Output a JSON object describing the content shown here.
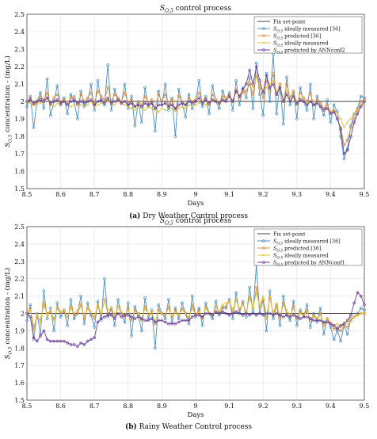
{
  "chart_data": [
    {
      "type": "line",
      "title": "S_{O,5} control process",
      "title_main": "S",
      "title_sub": "O,5",
      "title_rest": " control process",
      "xlabel": "Days",
      "ylabel": "S_{O,5} concentration - (mg/L)",
      "ylabel_main": "S",
      "ylabel_sub": "O,5",
      "ylabel_rest": " concentration - (mg/L)",
      "xlim": [
        8.5,
        9.5
      ],
      "ylim": [
        1.5,
        2.5
      ],
      "xticks": [
        8.5,
        8.6,
        8.7,
        8.8,
        8.9,
        9,
        9.1,
        9.2,
        9.3,
        9.4,
        9.5
      ],
      "yticks": [
        1.5,
        1.6,
        1.7,
        1.8,
        1.9,
        2,
        2.1,
        2.2,
        2.3,
        2.4,
        2.5
      ],
      "grid": true,
      "legend_position": "top-right",
      "setpoint": 2.0,
      "caption_label": "(a)",
      "caption_text": "Dry Weather Control process",
      "series": [
        {
          "name": "Fix set-point",
          "label_main": "Fix set-point",
          "color": "#404040",
          "marker": "none"
        },
        {
          "name": "S_{O,5} ideally measured [36]",
          "label_main": "S",
          "label_sub": "O,5",
          "label_rest": " ideally measured [36]",
          "color": "#4a90c4",
          "marker": "circle",
          "values": [
            1.97,
            2.03,
            1.85,
            2.0,
            2.05,
            1.96,
            2.13,
            1.92,
            2.0,
            2.09,
            1.98,
            2.02,
            1.93,
            2.04,
            2.0,
            1.9,
            2.06,
            1.97,
            2.0,
            2.1,
            1.95,
            2.12,
            2.0,
            1.98,
            2.21,
            1.95,
            2.07,
            2.01,
            1.99,
            2.1,
            1.96,
            2.03,
            1.86,
            2.0,
            1.88,
            2.08,
            1.97,
            2.0,
            1.83,
            2.06,
            1.98,
            2.1,
            1.95,
            2.02,
            1.8,
            2.07,
            1.99,
            1.91,
            2.04,
            1.96,
            2.0,
            2.12,
            1.97,
            2.03,
            1.93,
            2.09,
            2.0,
            1.96,
            2.06,
            2.01,
            2.05,
            1.95,
            2.12,
            1.98,
            2.08,
            2.02,
            2.14,
            1.96,
            2.22,
            2.04,
            1.92,
            2.16,
            2.0,
            2.27,
            1.93,
            2.1,
            1.87,
            2.14,
            1.98,
            2.05,
            1.9,
            2.08,
            2.0,
            1.95,
            2.1,
            1.9,
            2.03,
            1.97,
            1.92,
            2.01,
            1.88,
            1.98,
            1.94,
            1.8,
            1.67,
            1.73,
            1.86,
            1.93,
            1.96,
            2.03,
            2.02
          ]
        },
        {
          "name": "S_{O,5} predicted [36]",
          "label_main": "S",
          "label_sub": "O,5",
          "label_rest": " predicted [36]",
          "color": "#d98c3e",
          "marker": "circle",
          "values": [
            2.0,
            2.02,
            1.98,
            1.99,
            2.03,
            2.01,
            2.05,
            1.98,
            2.02,
            2.04,
            2.0,
            2.01,
            1.99,
            2.02,
            2.03,
            1.98,
            2.04,
            2.0,
            2.02,
            2.05,
            1.99,
            2.06,
            2.03,
            2.01,
            2.08,
            2.0,
            2.04,
            2.02,
            2.0,
            2.05,
            1.99,
            2.01,
            1.97,
            2.0,
            1.98,
            2.03,
            1.99,
            2.01,
            1.96,
            2.04,
            2.0,
            2.04,
            1.98,
            2.01,
            1.95,
            2.03,
            2.0,
            1.98,
            2.02,
            2.0,
            2.01,
            2.05,
            2.0,
            2.02,
            1.98,
            2.04,
            2.01,
            1.99,
            2.03,
            2.02,
            2.04,
            2.0,
            2.07,
            2.02,
            2.05,
            2.06,
            2.1,
            2.04,
            2.15,
            2.08,
            2.02,
            2.12,
            2.06,
            2.16,
            2.04,
            2.1,
            2.0,
            2.1,
            2.02,
            2.06,
            1.98,
            2.05,
            2.02,
            2.0,
            2.05,
            1.98,
            2.01,
            1.99,
            1.96,
            1.98,
            1.94,
            1.95,
            1.9,
            1.85,
            1.75,
            1.78,
            1.85,
            1.9,
            1.95,
            2.0,
            2.01
          ]
        },
        {
          "name": "S_{O,5} ideally measured",
          "label_main": "S",
          "label_sub": "O,5",
          "label_rest": " ideally measured",
          "color": "#e3c23a",
          "marker": "x",
          "values": [
            2.0,
            1.99,
            1.98,
            2.01,
            1.99,
            2.0,
            2.02,
            1.98,
            1.97,
            1.99,
            1.98,
            2.0,
            1.99,
            1.97,
            1.98,
            1.99,
            1.98,
            1.97,
            1.98,
            2.0,
            1.97,
            1.98,
            1.99,
            2.0,
            2.01,
            1.99,
            1.98,
            2.0,
            1.99,
            1.98,
            1.97,
            1.96,
            1.95,
            1.97,
            1.96,
            1.95,
            1.97,
            1.96,
            1.95,
            1.94,
            1.96,
            1.95,
            1.97,
            1.96,
            1.95,
            1.96,
            1.97,
            1.96,
            1.98,
            1.97,
            1.98,
            1.99,
            2.0,
            1.98,
            1.99,
            2.0,
            2.01,
            1.99,
            2.0,
            2.02,
            2.03,
            2.01,
            2.05,
            2.03,
            2.06,
            2.1,
            2.12,
            2.08,
            2.14,
            2.1,
            2.05,
            2.08,
            2.1,
            2.12,
            2.05,
            2.1,
            2.0,
            2.06,
            2.03,
            2.04,
            2.0,
            2.02,
            2.0,
            1.99,
            2.0,
            1.98,
            1.99,
            1.97,
            1.95,
            1.96,
            1.94,
            1.95,
            1.93,
            1.9,
            1.85,
            1.88,
            1.9,
            1.93,
            1.95,
            1.98,
            2.0
          ]
        },
        {
          "name": "S_{O,5} predicted by ANNconf2",
          "label_main": "S",
          "label_sub": "O,5",
          "label_rest": " predicted by ANNconf2",
          "color": "#6a3d9a",
          "marker": "circle",
          "values": [
            2.0,
            2.01,
            1.99,
            2.0,
            2.01,
            2.0,
            2.02,
            1.99,
            2.0,
            2.01,
            1.99,
            2.0,
            1.98,
            2.0,
            2.01,
            1.99,
            2.0,
            1.99,
            2.0,
            2.01,
            1.98,
            2.0,
            2.01,
            1.99,
            2.02,
            1.99,
            2.0,
            2.01,
            1.99,
            2.0,
            1.98,
            1.99,
            1.97,
            1.98,
            1.97,
            1.99,
            1.98,
            1.99,
            1.96,
            1.98,
            1.98,
            1.99,
            1.97,
            1.98,
            1.96,
            1.98,
            1.99,
            1.98,
            2.0,
            1.99,
            2.0,
            2.02,
            1.99,
            2.01,
            1.99,
            2.01,
            2.0,
            1.99,
            2.01,
            2.0,
            2.03,
            2.0,
            2.06,
            2.03,
            2.07,
            2.1,
            2.18,
            2.1,
            2.2,
            2.12,
            2.05,
            2.15,
            2.08,
            2.1,
            2.04,
            2.08,
            2.0,
            2.04,
            2.0,
            2.03,
            1.99,
            2.01,
            2.0,
            1.98,
            2.0,
            1.98,
            1.99,
            1.97,
            1.95,
            1.96,
            1.93,
            1.94,
            1.9,
            1.84,
            1.7,
            1.72,
            1.8,
            1.88,
            1.93,
            1.97,
            2.0
          ]
        }
      ]
    },
    {
      "type": "line",
      "title": "S_{O,5} control process",
      "title_main": "S",
      "title_sub": "O,5",
      "title_rest": " control process",
      "xlabel": "Days",
      "ylabel": "S_{O,5} concentration - (mg/L)",
      "ylabel_main": "S",
      "ylabel_sub": "O,5",
      "ylabel_rest": " concentration - (mg/L)",
      "xlim": [
        8.5,
        9.5
      ],
      "ylim": [
        1.5,
        2.5
      ],
      "xticks": [
        8.5,
        8.6,
        8.7,
        8.8,
        8.9,
        9,
        9.1,
        9.2,
        9.3,
        9.4,
        9.5
      ],
      "yticks": [
        1.5,
        1.6,
        1.7,
        1.8,
        1.9,
        2,
        2.1,
        2.2,
        2.3,
        2.4,
        2.5
      ],
      "grid": true,
      "legend_position": "top-right",
      "setpoint": 2.0,
      "caption_label": "(b)",
      "caption_text": "Rainy Weather Control process",
      "series": [
        {
          "name": "Fix set-point",
          "label_main": "Fix set-point",
          "color": "#404040",
          "marker": "none"
        },
        {
          "name": "S_{O,5} ideally measured [36]",
          "label_main": "S",
          "label_sub": "O,5",
          "label_rest": " ideally measured [36]",
          "color": "#4a90c4",
          "marker": "circle",
          "values": [
            1.96,
            2.05,
            1.85,
            2.0,
            1.88,
            2.13,
            1.97,
            2.03,
            1.9,
            2.06,
            1.98,
            2.02,
            1.93,
            2.08,
            1.97,
            2.0,
            2.1,
            1.94,
            2.06,
            1.99,
            1.92,
            2.07,
            1.96,
            2.2,
            1.98,
            2.03,
            1.93,
            2.08,
            2.0,
            1.95,
            2.06,
            1.87,
            2.04,
            1.99,
            1.9,
            2.09,
            1.97,
            2.02,
            1.8,
            2.05,
            2.0,
            1.97,
            2.08,
            1.95,
            2.03,
            1.97,
            2.06,
            2.0,
            1.94,
            2.1,
            1.98,
            2.03,
            1.93,
            2.06,
            2.0,
            1.97,
            2.07,
            1.99,
            2.04,
            2.03,
            2.08,
            1.97,
            2.12,
            2.0,
            2.07,
            1.98,
            2.15,
            2.01,
            2.28,
            2.0,
            2.08,
            1.9,
            2.13,
            1.97,
            2.05,
            1.93,
            2.1,
            1.99,
            1.96,
            2.07,
            1.93,
            2.02,
            1.98,
            2.05,
            1.92,
            2.0,
            1.95,
            2.03,
            1.88,
            1.97,
            1.92,
            1.85,
            1.9,
            1.84,
            1.93,
            1.88,
            1.97,
            1.98,
            2.0,
            2.03,
            2.02
          ]
        },
        {
          "name": "S_{O,5} predicted [36]",
          "label_main": "S",
          "label_sub": "O,5",
          "label_rest": " predicted [36]",
          "color": "#d98c3e",
          "marker": "circle",
          "values": [
            2.0,
            2.03,
            1.92,
            1.98,
            1.96,
            2.05,
            2.0,
            2.01,
            1.97,
            2.03,
            2.0,
            2.01,
            1.98,
            2.04,
            1.99,
            2.0,
            2.05,
            1.97,
            2.03,
            2.0,
            1.97,
            2.04,
            1.99,
            2.08,
            2.0,
            2.02,
            1.98,
            2.04,
            2.0,
            1.98,
            2.03,
            1.96,
            2.02,
            2.0,
            1.96,
            2.04,
            1.99,
            2.01,
            1.94,
            2.02,
            2.0,
            1.99,
            2.04,
            1.98,
            2.02,
            1.99,
            2.03,
            2.0,
            1.97,
            2.05,
            1.99,
            2.02,
            1.97,
            2.04,
            2.0,
            1.99,
            2.04,
            2.0,
            2.03,
            2.04,
            2.07,
            2.0,
            2.08,
            2.02,
            2.06,
            2.0,
            2.1,
            2.03,
            2.15,
            2.04,
            2.08,
            1.97,
            2.09,
            2.0,
            2.04,
            1.97,
            2.06,
            2.0,
            1.98,
            2.04,
            1.97,
            2.01,
            1.99,
            2.02,
            1.96,
            1.99,
            1.97,
            2.0,
            1.93,
            1.97,
            1.94,
            1.91,
            1.92,
            1.9,
            1.93,
            1.92,
            1.96,
            1.98,
            1.99,
            2.0,
            2.0
          ]
        },
        {
          "name": "S_{O,5} ideally measured",
          "label_main": "S",
          "label_sub": "O,5",
          "label_rest": " ideally measured",
          "color": "#e3c23a",
          "marker": "x",
          "values": [
            2.0,
            2.02,
            1.9,
            2.0,
            1.94,
            2.07,
            1.98,
            2.02,
            1.96,
            2.04,
            2.01,
            2.02,
            1.98,
            2.03,
            2.0,
            2.02,
            2.06,
            1.98,
            2.04,
            2.01,
            1.98,
            2.05,
            2.0,
            2.07,
            2.02,
            2.03,
            1.99,
            2.04,
            2.01,
            1.99,
            2.02,
            1.97,
            2.01,
            2.0,
            1.97,
            2.03,
            1.99,
            2.01,
            1.95,
            2.01,
            2.0,
            1.99,
            2.03,
            1.98,
            2.01,
            1.99,
            2.02,
            2.0,
            1.98,
            2.03,
            1.99,
            2.01,
            1.98,
            2.03,
            2.0,
            1.99,
            2.04,
            2.01,
            2.05,
            2.06,
            2.07,
            2.02,
            2.08,
            2.03,
            2.05,
            2.01,
            2.09,
            2.03,
            2.12,
            2.04,
            2.1,
            1.98,
            2.1,
            2.0,
            2.06,
            1.98,
            2.05,
            2.02,
            1.99,
            2.03,
            1.98,
            2.0,
            1.99,
            2.01,
            1.97,
            1.98,
            1.97,
            1.99,
            1.94,
            1.97,
            1.95,
            1.93,
            1.94,
            1.92,
            1.95,
            1.94,
            1.97,
            1.98,
            1.99,
            2.0,
            2.0
          ]
        },
        {
          "name": "S_{O,5} predicted by ANNconf1",
          "label_main": "S",
          "label_sub": "O,5",
          "label_rest": " predicted by ANNconf1",
          "color": "#6a3d9a",
          "marker": "circle",
          "values": [
            2.0,
            1.98,
            1.86,
            1.84,
            1.87,
            1.9,
            1.85,
            1.84,
            1.84,
            1.84,
            1.84,
            1.84,
            1.83,
            1.82,
            1.82,
            1.81,
            1.83,
            1.82,
            1.84,
            1.85,
            1.86,
            1.95,
            1.97,
            1.98,
            1.99,
            1.99,
            1.97,
            2.0,
            1.98,
            1.99,
            1.99,
            1.98,
            1.97,
            1.98,
            1.97,
            1.96,
            1.96,
            1.97,
            1.95,
            1.96,
            1.96,
            1.95,
            1.94,
            1.94,
            1.94,
            1.95,
            1.96,
            1.96,
            1.96,
            1.98,
            1.99,
            1.99,
            1.98,
            2.0,
            2.0,
            1.99,
            2.01,
            2.0,
            2.01,
            2.0,
            1.99,
            2.0,
            2.01,
            2.0,
            1.99,
            2.0,
            1.99,
            2.0,
            1.99,
            2.0,
            1.99,
            2.0,
            2.0,
            1.99,
            2.0,
            1.99,
            1.98,
            1.99,
            1.98,
            1.99,
            1.98,
            1.97,
            1.98,
            1.98,
            1.97,
            1.96,
            1.96,
            1.96,
            1.95,
            1.95,
            1.94,
            1.93,
            1.91,
            1.93,
            1.94,
            1.96,
            1.99,
            2.06,
            2.12,
            2.1,
            2.05
          ]
        }
      ]
    }
  ]
}
